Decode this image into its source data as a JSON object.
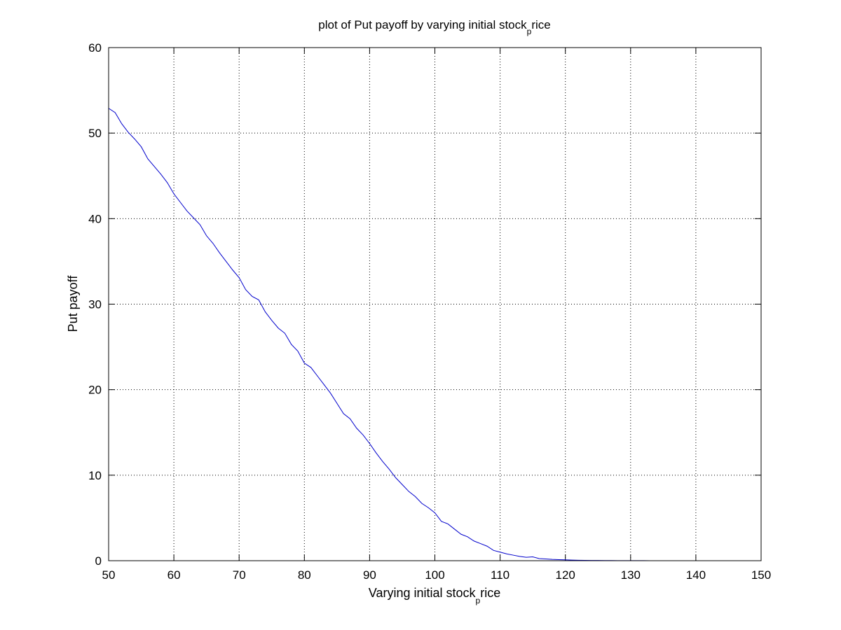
{
  "chart_data": {
    "type": "line",
    "title": "plot of Put payoff by varying initial stock",
    "title_subscript": "p",
    "title_suffix": "rice",
    "xlabel": "Varying initial stock",
    "xlabel_subscript": "p",
    "xlabel_suffix": "rice",
    "ylabel": "Put payoff",
    "xlim": [
      50,
      150
    ],
    "ylim": [
      0,
      60
    ],
    "xticks": [
      50,
      60,
      70,
      80,
      90,
      100,
      110,
      120,
      130,
      140,
      150
    ],
    "yticks": [
      0,
      10,
      20,
      30,
      40,
      50,
      60
    ],
    "grid": true,
    "grid_style": "dotted",
    "line_color": "#0000cc",
    "series": [
      {
        "x": [
          50,
          51,
          52,
          53,
          54,
          55,
          56,
          57,
          58,
          59,
          60,
          61,
          62,
          63,
          64,
          65,
          66,
          67,
          68,
          69,
          70,
          71,
          72,
          73,
          74,
          75,
          76,
          77,
          78,
          79,
          80,
          81,
          82,
          83,
          84,
          85,
          86,
          87,
          88,
          89,
          90,
          91,
          92,
          93,
          94,
          95,
          96,
          97,
          98,
          99,
          100,
          101,
          102,
          103,
          104,
          105,
          106,
          107,
          108,
          109,
          110,
          111,
          112,
          113,
          114,
          115,
          116,
          117,
          118,
          119,
          120,
          121,
          122,
          123,
          124,
          125,
          126,
          127,
          128,
          129,
          130,
          131,
          132,
          133,
          134,
          135.5
        ],
        "values": [
          52.9,
          52.4,
          51.1,
          50.1,
          49.3,
          48.4,
          47.0,
          46.1,
          45.2,
          44.2,
          42.9,
          41.9,
          40.9,
          40.1,
          39.3,
          38.0,
          37.1,
          36.0,
          35.0,
          34.0,
          33.1,
          31.7,
          30.9,
          30.5,
          29.1,
          28.1,
          27.2,
          26.6,
          25.3,
          24.5,
          23.1,
          22.6,
          21.6,
          20.6,
          19.6,
          18.4,
          17.2,
          16.6,
          15.5,
          14.7,
          13.7,
          12.6,
          11.6,
          10.7,
          9.7,
          8.9,
          8.1,
          7.5,
          6.7,
          6.2,
          5.6,
          4.6,
          4.3,
          3.7,
          3.1,
          2.8,
          2.3,
          2.0,
          1.7,
          1.2,
          1.0,
          0.8,
          0.65,
          0.5,
          0.4,
          0.45,
          0.25,
          0.2,
          0.15,
          0.12,
          0.1,
          0.07,
          0.05,
          0.04,
          0.03,
          0.03,
          0.02,
          0.02,
          0.01,
          0.01,
          0.01,
          0.01,
          0.01,
          0.0,
          0.0,
          0.0
        ]
      }
    ]
  }
}
